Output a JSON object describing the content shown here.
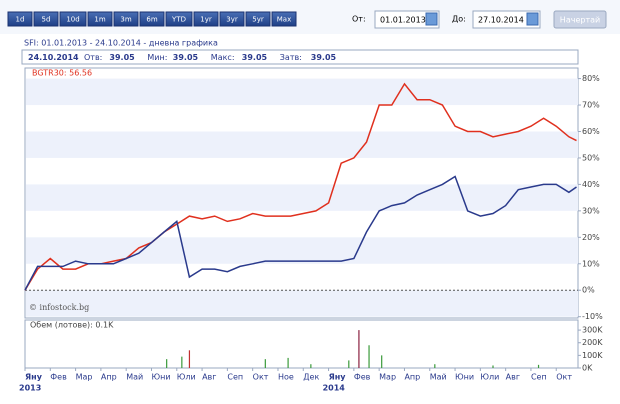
{
  "toolbar": {
    "buttons": [
      "1d",
      "5d",
      "10d",
      "1m",
      "3m",
      "6m",
      "YTD",
      "1yr",
      "3yr",
      "5yr",
      "Max"
    ],
    "from_label": "От:",
    "from_value": "01.01.2013",
    "to_label": "До:",
    "to_value": "27.10.2014",
    "submit": "Начертай"
  },
  "header": {
    "title": "SFI: 01.01.2013 - 24.10.2014 - дневна графика",
    "date": "24.10.2014",
    "items": [
      {
        "label": "Отв:",
        "value": 39.05
      },
      {
        "label": "Мин:",
        "value": 39.05
      },
      {
        "label": "Макс:",
        "value": 39.05
      },
      {
        "label": "Затв:",
        "value": 39.05
      }
    ]
  },
  "chart_data": {
    "type": "line",
    "legend_text": "BGTR30: 56.56",
    "watermark": "© infostock.bg",
    "x": [
      0,
      0.5,
      1,
      1.5,
      2,
      2.5,
      3,
      3.5,
      4,
      4.5,
      5,
      5.5,
      6,
      6.5,
      7,
      7.5,
      8,
      8.5,
      9,
      9.5,
      10,
      10.5,
      11,
      11.5,
      12,
      12.5,
      13,
      13.5,
      14,
      14.5,
      15,
      15.5,
      16,
      16.5,
      17,
      17.5,
      18,
      18.5,
      19,
      19.5,
      20,
      20.5,
      21,
      21.5,
      21.8
    ],
    "xlim": [
      0,
      21.86
    ],
    "xticks": [
      {
        "value": 0,
        "label": "Яну"
      },
      {
        "value": 1,
        "label": "Фев"
      },
      {
        "value": 2,
        "label": "Мар"
      },
      {
        "value": 3,
        "label": "Апр"
      },
      {
        "value": 4,
        "label": "Май"
      },
      {
        "value": 5,
        "label": "Юни"
      },
      {
        "value": 6,
        "label": "Юли"
      },
      {
        "value": 7,
        "label": "Авг"
      },
      {
        "value": 8,
        "label": "Сеп"
      },
      {
        "value": 9,
        "label": "Окт"
      },
      {
        "value": 10,
        "label": "Ное"
      },
      {
        "value": 11,
        "label": "Дек"
      },
      {
        "value": 12,
        "label": "Яну"
      },
      {
        "value": 13,
        "label": "Фев"
      },
      {
        "value": 14,
        "label": "Мар"
      },
      {
        "value": 15,
        "label": "Апр"
      },
      {
        "value": 16,
        "label": "Май"
      },
      {
        "value": 17,
        "label": "Юни"
      },
      {
        "value": 18,
        "label": "Юли"
      },
      {
        "value": 19,
        "label": "Авг"
      },
      {
        "value": 20,
        "label": "Сеп"
      },
      {
        "value": 21,
        "label": "Окт"
      }
    ],
    "year_labels": [
      {
        "value": 0,
        "label": "2013"
      },
      {
        "value": 12,
        "label": "2014"
      }
    ],
    "ylim": [
      -10.5,
      84
    ],
    "yticks": [
      {
        "value": 80,
        "label": "80%"
      },
      {
        "value": 70,
        "label": "70%"
      },
      {
        "value": 60,
        "label": "60%"
      },
      {
        "value": 50,
        "label": "50%"
      },
      {
        "value": 40,
        "label": "40%"
      },
      {
        "value": 30,
        "label": "30%"
      },
      {
        "value": 20,
        "label": "20%"
      },
      {
        "value": 10,
        "label": "10%"
      },
      {
        "value": 0,
        "label": "0%"
      },
      {
        "value": -10,
        "label": "-10%"
      }
    ],
    "series": [
      {
        "name": "BGTR30",
        "color": "#e0301e",
        "values": [
          0,
          8,
          12,
          8,
          8,
          10,
          10,
          11,
          12,
          16,
          18,
          22,
          25,
          28,
          27,
          28,
          26,
          27,
          29,
          28,
          28,
          28,
          29,
          30,
          33,
          48,
          50,
          56,
          70,
          70,
          78,
          72,
          72,
          70,
          62,
          60,
          60,
          58,
          59,
          60,
          62,
          65,
          62,
          58,
          56.56
        ]
      },
      {
        "name": "SFI",
        "color": "#2a3a8c",
        "values": [
          0,
          9,
          9,
          9,
          11,
          10,
          10,
          10,
          12,
          14,
          18,
          22,
          26,
          5,
          8,
          8,
          7,
          9,
          10,
          11,
          11,
          11,
          11,
          11,
          11,
          11,
          12,
          22,
          30,
          32,
          33,
          36,
          38,
          40,
          43,
          30,
          28,
          29,
          32,
          38,
          39,
          40,
          40,
          37,
          39
        ]
      }
    ],
    "volume": {
      "label": "Обем (лотове): 0.1K",
      "x": [
        5.6,
        6.2,
        6.5,
        9.5,
        10.4,
        11.3,
        12.8,
        13.2,
        13.6,
        14.1,
        16.2,
        18.5,
        20.3
      ],
      "values": [
        70,
        90,
        140,
        70,
        80,
        30,
        60,
        300,
        180,
        100,
        30,
        20,
        25
      ],
      "colors": [
        "#3a9a3a",
        "#3a9a3a",
        "#c03030",
        "#3a9a3a",
        "#3a9a3a",
        "#3a9a3a",
        "#3a9a3a",
        "#8a2040",
        "#3a9a3a",
        "#3a9a3a",
        "#3a9a3a",
        "#3a9a3a",
        "#3a9a3a"
      ],
      "ylim": [
        0,
        380
      ],
      "yticks": [
        {
          "value": 300,
          "label": "300K"
        },
        {
          "value": 200,
          "label": "200K"
        },
        {
          "value": 100,
          "label": "100K"
        },
        {
          "value": 0,
          "label": "0K"
        }
      ]
    }
  }
}
